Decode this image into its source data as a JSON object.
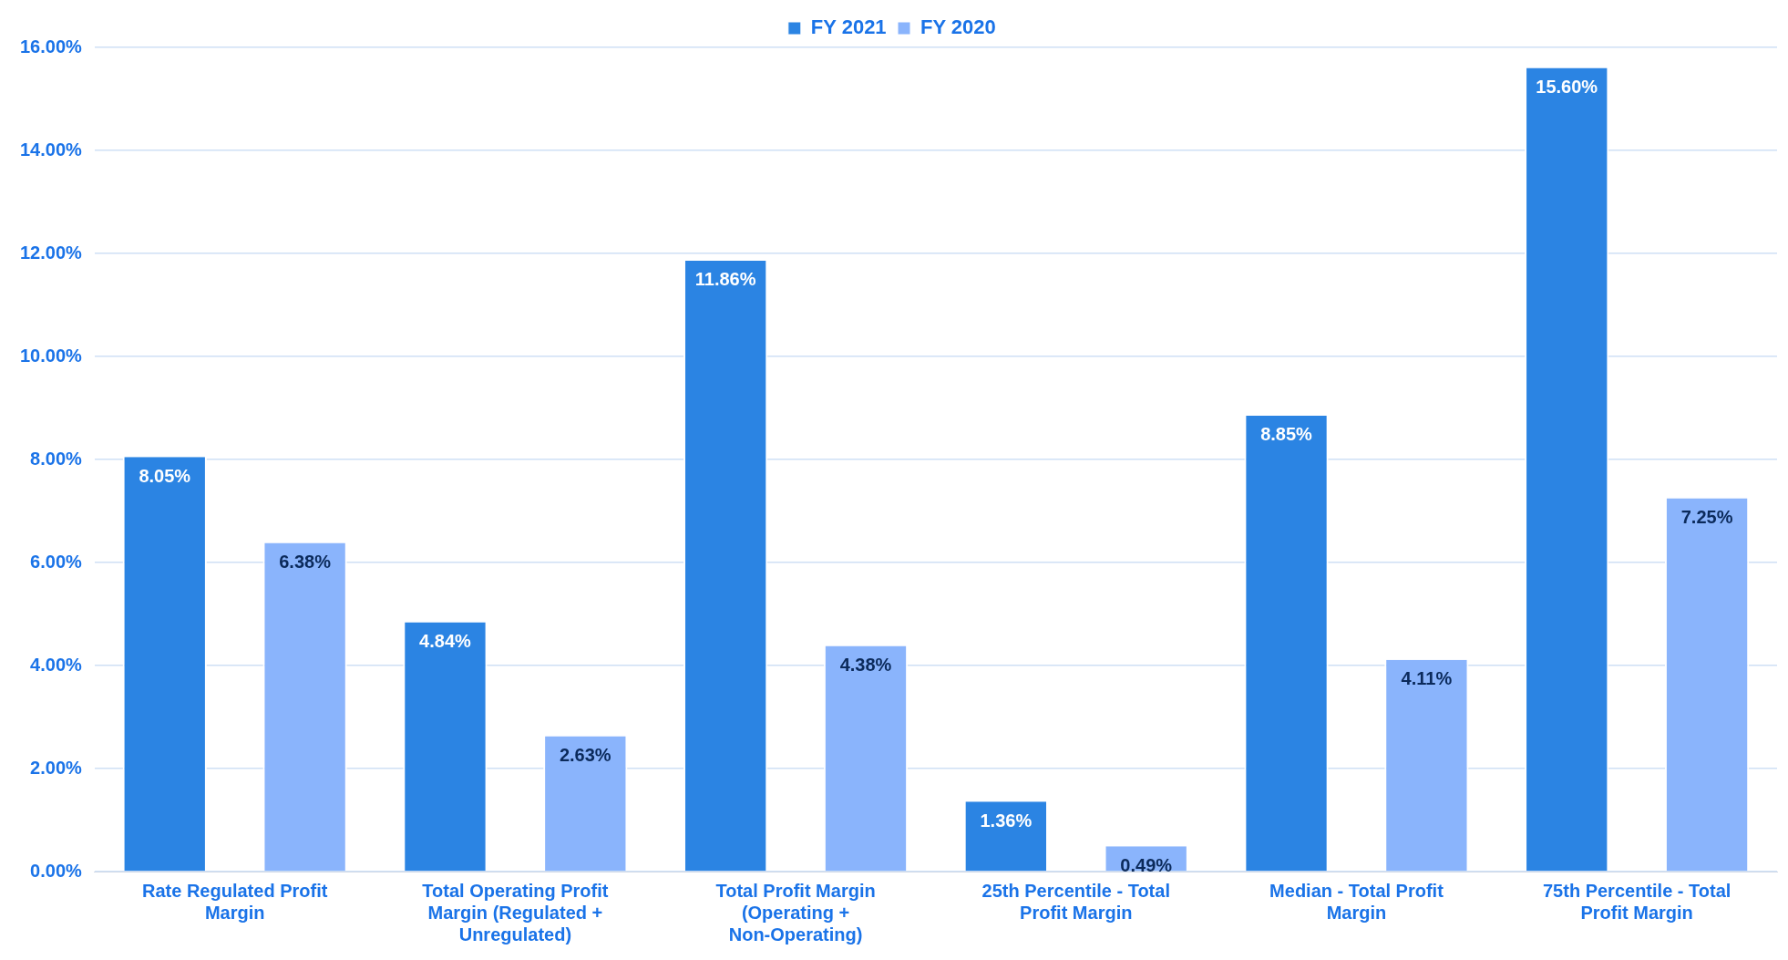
{
  "chart_data": {
    "type": "bar",
    "categories": [
      "Rate Regulated Profit Margin",
      "Total Operating Profit Margin (Regulated + Unregulated)",
      "Total Profit Margin (Operating + Non-Operating)",
      "25th Percentile - Total Profit Margin",
      "Median - Total Profit Margin",
      "75th Percentile - Total Profit Margin"
    ],
    "series": [
      {
        "name": "FY 2021",
        "color": "#2b84e3",
        "values": [
          8.05,
          4.84,
          11.86,
          1.36,
          8.85,
          15.6
        ],
        "value_labels": [
          "8.05%",
          "4.84%",
          "11.86%",
          "1.36%",
          "8.85%",
          "15.60%"
        ]
      },
      {
        "name": "FY 2020",
        "color": "#8ab4fc",
        "values": [
          6.38,
          2.63,
          4.38,
          0.49,
          4.11,
          7.25
        ],
        "value_labels": [
          "6.38%",
          "2.63%",
          "4.38%",
          "0.49%",
          "4.11%",
          "7.25%"
        ]
      }
    ],
    "ylim": [
      0,
      16
    ],
    "yticks": [
      {
        "value": 0,
        "label": "0.00%"
      },
      {
        "value": 2,
        "label": "2.00%"
      },
      {
        "value": 4,
        "label": "4.00%"
      },
      {
        "value": 6,
        "label": "6.00%"
      },
      {
        "value": 8,
        "label": "8.00%"
      },
      {
        "value": 10,
        "label": "10.00%"
      },
      {
        "value": 12,
        "label": "12.00%"
      },
      {
        "value": 14,
        "label": "14.00%"
      },
      {
        "value": 16,
        "label": "16.00%"
      }
    ],
    "grid": "y",
    "legend": "top"
  }
}
